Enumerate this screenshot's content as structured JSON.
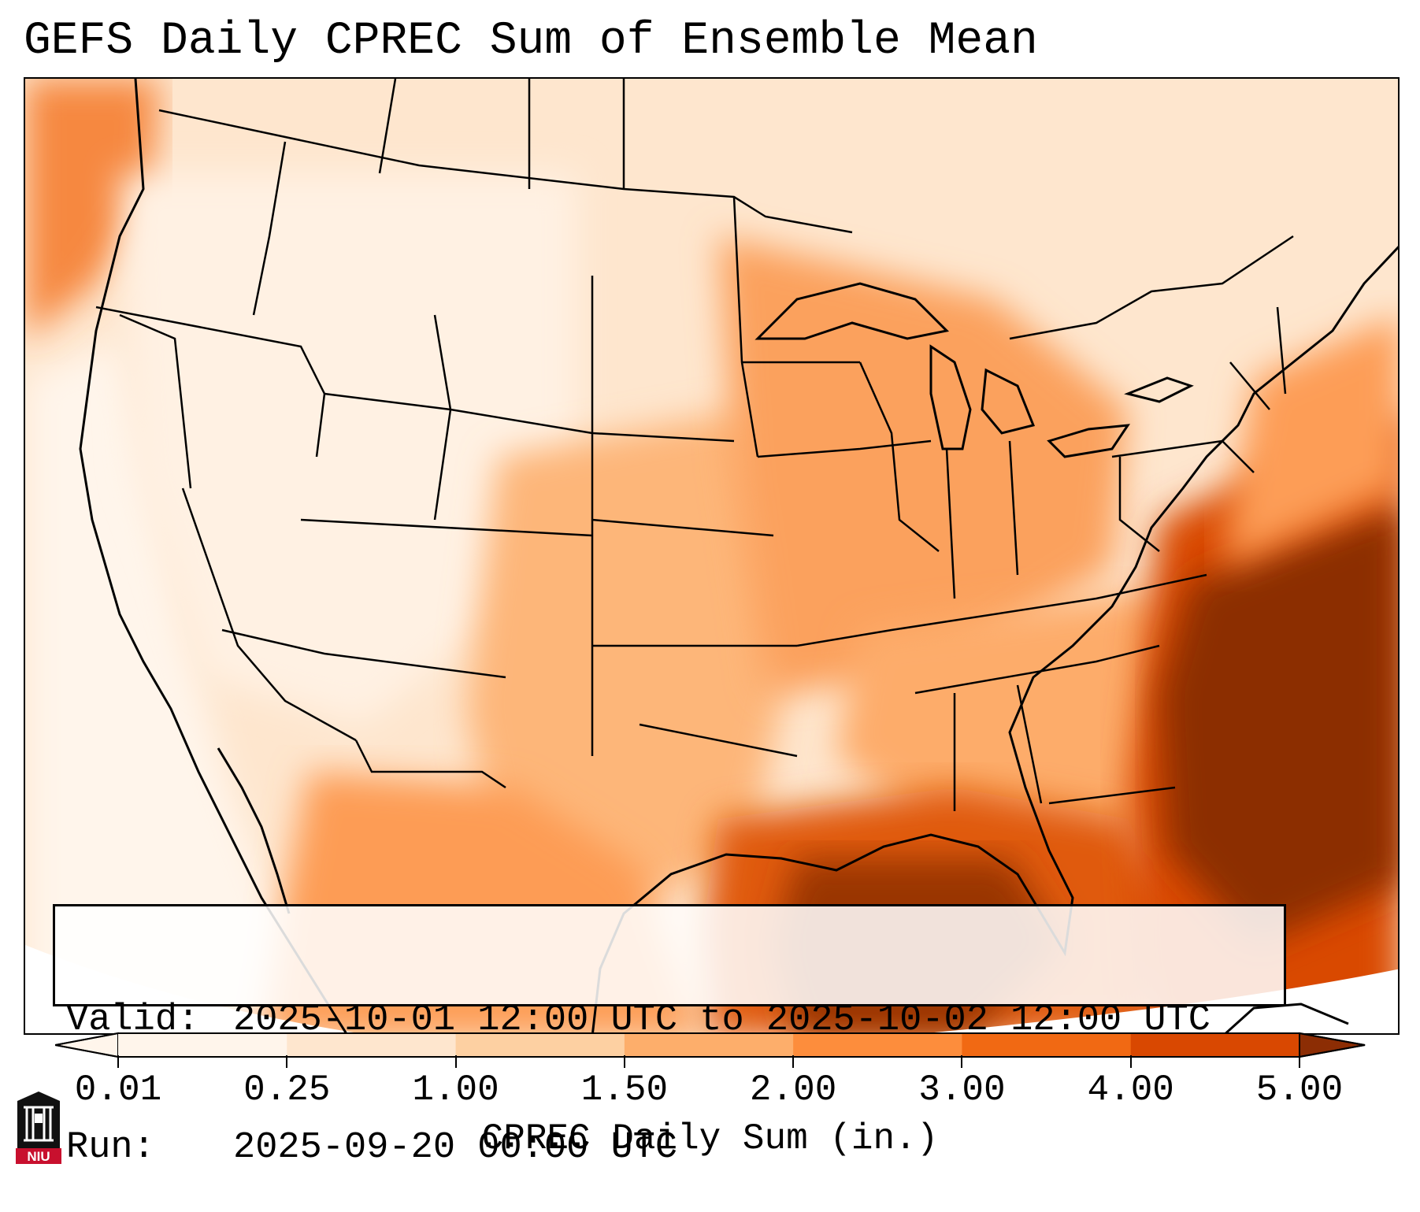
{
  "title": "GEFS Daily CPREC Sum of Ensemble Mean",
  "info": {
    "valid_label": "Valid:",
    "valid_value": "2025-10-01 12:00 UTC to 2025-10-02 12:00 UTC",
    "run_label": "Run:",
    "run_value": "2025-09-20 00:00 UTC"
  },
  "colorbar": {
    "label": "CPREC Daily Sum (in.)",
    "ticks": [
      "0.01",
      "0.25",
      "1.00",
      "1.50",
      "2.00",
      "3.00",
      "4.00",
      "5.00"
    ],
    "colors": [
      "#fff5eb",
      "#fee6ce",
      "#fdd0a2",
      "#fdae6b",
      "#fd8d3c",
      "#f16913",
      "#d94801",
      "#8c2d04"
    ],
    "extend": "both"
  },
  "logo": {
    "text": "NIU"
  },
  "colors": {
    "ocean_heavy": "#8c2d04",
    "outline": "#000000"
  }
}
